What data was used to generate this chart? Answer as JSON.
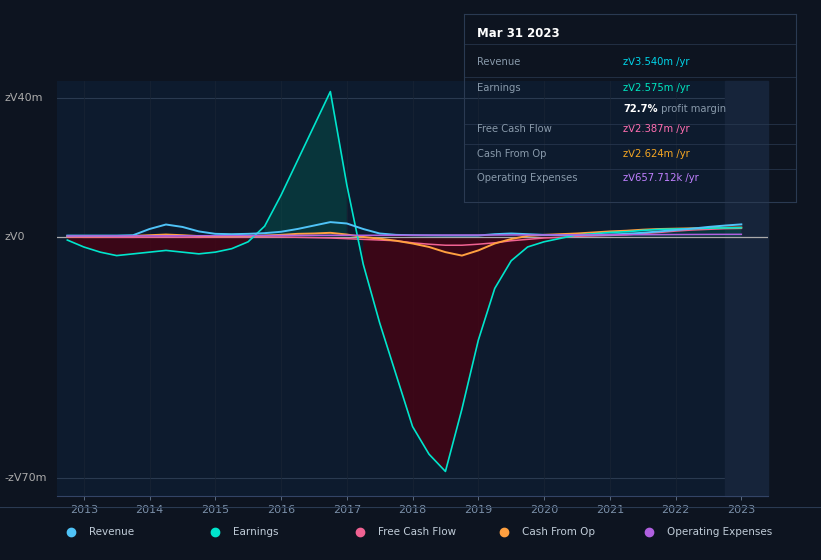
{
  "bg_color": "#0d1420",
  "plot_bg_color": "#0d1b2e",
  "right_bg_color": "#111d30",
  "title_text": "Mar 31 2023",
  "info_labels": [
    "Revenue",
    "Earnings",
    "Free Cash Flow",
    "Cash From Op",
    "Operating Expenses"
  ],
  "info_values": [
    "zᐯ3.540m /yr",
    "zᐯ2.575m /yr",
    "zᐯ2.387m /yr",
    "zᐯ2.624m /yr",
    "zᐯ657.712k /yr"
  ],
  "info_colors": [
    "#00d4e8",
    "#00e5c0",
    "#ff6eb0",
    "#f5a623",
    "#c080ff"
  ],
  "profit_margin_text": "72.7%",
  "profit_margin_label": " profit margin",
  "ylabel_top": "zᐯ40m",
  "ylabel_zero": "zᐯ0",
  "ylabel_bottom": "-zᐯ70m",
  "ylim": [
    -75000000,
    45000000
  ],
  "xlim": [
    2012.6,
    2023.4
  ],
  "xticks": [
    2013,
    2014,
    2015,
    2016,
    2017,
    2018,
    2019,
    2020,
    2021,
    2022,
    2023
  ],
  "legend": [
    {
      "label": "Revenue",
      "color": "#4fc3f7"
    },
    {
      "label": "Earnings",
      "color": "#00e5cc"
    },
    {
      "label": "Free Cash Flow",
      "color": "#f06292"
    },
    {
      "label": "Cash From Op",
      "color": "#ffa040"
    },
    {
      "label": "Operating Expenses",
      "color": "#b060e0"
    }
  ],
  "x": [
    2012.75,
    2013.0,
    2013.25,
    2013.5,
    2013.75,
    2014.0,
    2014.25,
    2014.5,
    2014.75,
    2015.0,
    2015.25,
    2015.5,
    2015.75,
    2016.0,
    2016.25,
    2016.5,
    2016.75,
    2017.0,
    2017.25,
    2017.5,
    2017.75,
    2018.0,
    2018.25,
    2018.5,
    2018.75,
    2019.0,
    2019.25,
    2019.5,
    2019.75,
    2020.0,
    2020.25,
    2020.5,
    2020.75,
    2021.0,
    2021.25,
    2021.5,
    2021.75,
    2022.0,
    2022.25,
    2022.5,
    2022.75,
    2023.0
  ],
  "revenue": [
    300000,
    300000,
    300000,
    300000,
    400000,
    2200000,
    3500000,
    2800000,
    1500000,
    800000,
    700000,
    800000,
    1000000,
    1400000,
    2200000,
    3200000,
    4200000,
    3800000,
    2200000,
    900000,
    500000,
    400000,
    350000,
    320000,
    310000,
    310000,
    700000,
    900000,
    700000,
    500000,
    450000,
    450000,
    500000,
    600000,
    800000,
    1100000,
    1500000,
    1900000,
    2300000,
    2800000,
    3200000,
    3540000
  ],
  "earnings": [
    -1000000,
    -3000000,
    -4500000,
    -5500000,
    -5000000,
    -4500000,
    -4000000,
    -4500000,
    -5000000,
    -4500000,
    -3500000,
    -1500000,
    3000000,
    12000000,
    22000000,
    32000000,
    42000000,
    15000000,
    -8000000,
    -25000000,
    -40000000,
    -55000000,
    -63000000,
    -68000000,
    -50000000,
    -30000000,
    -15000000,
    -7000000,
    -3000000,
    -1500000,
    -500000,
    500000,
    800000,
    1200000,
    1400000,
    1800000,
    2100000,
    2200000,
    2300000,
    2450000,
    2520000,
    2575000
  ],
  "free_cash_flow": [
    -100000,
    -200000,
    -200000,
    -200000,
    -200000,
    -150000,
    -100000,
    -150000,
    -200000,
    -150000,
    -100000,
    -100000,
    -100000,
    -100000,
    -200000,
    -300000,
    -400000,
    -600000,
    -800000,
    -1000000,
    -1200000,
    -1800000,
    -2200000,
    -2500000,
    -2500000,
    -2200000,
    -1800000,
    -1200000,
    -800000,
    -400000,
    -200000,
    100000,
    200000,
    350000,
    500000,
    900000,
    1200000,
    1600000,
    1900000,
    2100000,
    2300000,
    2387000
  ],
  "cash_from_op": [
    100000,
    100000,
    100000,
    150000,
    200000,
    400000,
    600000,
    400000,
    150000,
    100000,
    100000,
    200000,
    300000,
    500000,
    800000,
    900000,
    1100000,
    600000,
    -100000,
    -600000,
    -1200000,
    -2000000,
    -3000000,
    -4500000,
    -5500000,
    -4000000,
    -2000000,
    -700000,
    200000,
    500000,
    700000,
    900000,
    1200000,
    1500000,
    1700000,
    2000000,
    2200000,
    2300000,
    2400000,
    2500000,
    2580000,
    2624000
  ],
  "op_expenses": [
    180000,
    200000,
    210000,
    210000,
    220000,
    220000,
    230000,
    240000,
    250000,
    260000,
    270000,
    280000,
    300000,
    320000,
    340000,
    360000,
    380000,
    380000,
    380000,
    390000,
    400000,
    410000,
    420000,
    430000,
    440000,
    450000,
    460000,
    470000,
    480000,
    490000,
    500000,
    510000,
    520000,
    530000,
    545000,
    560000,
    575000,
    595000,
    615000,
    635000,
    648000,
    657712
  ]
}
